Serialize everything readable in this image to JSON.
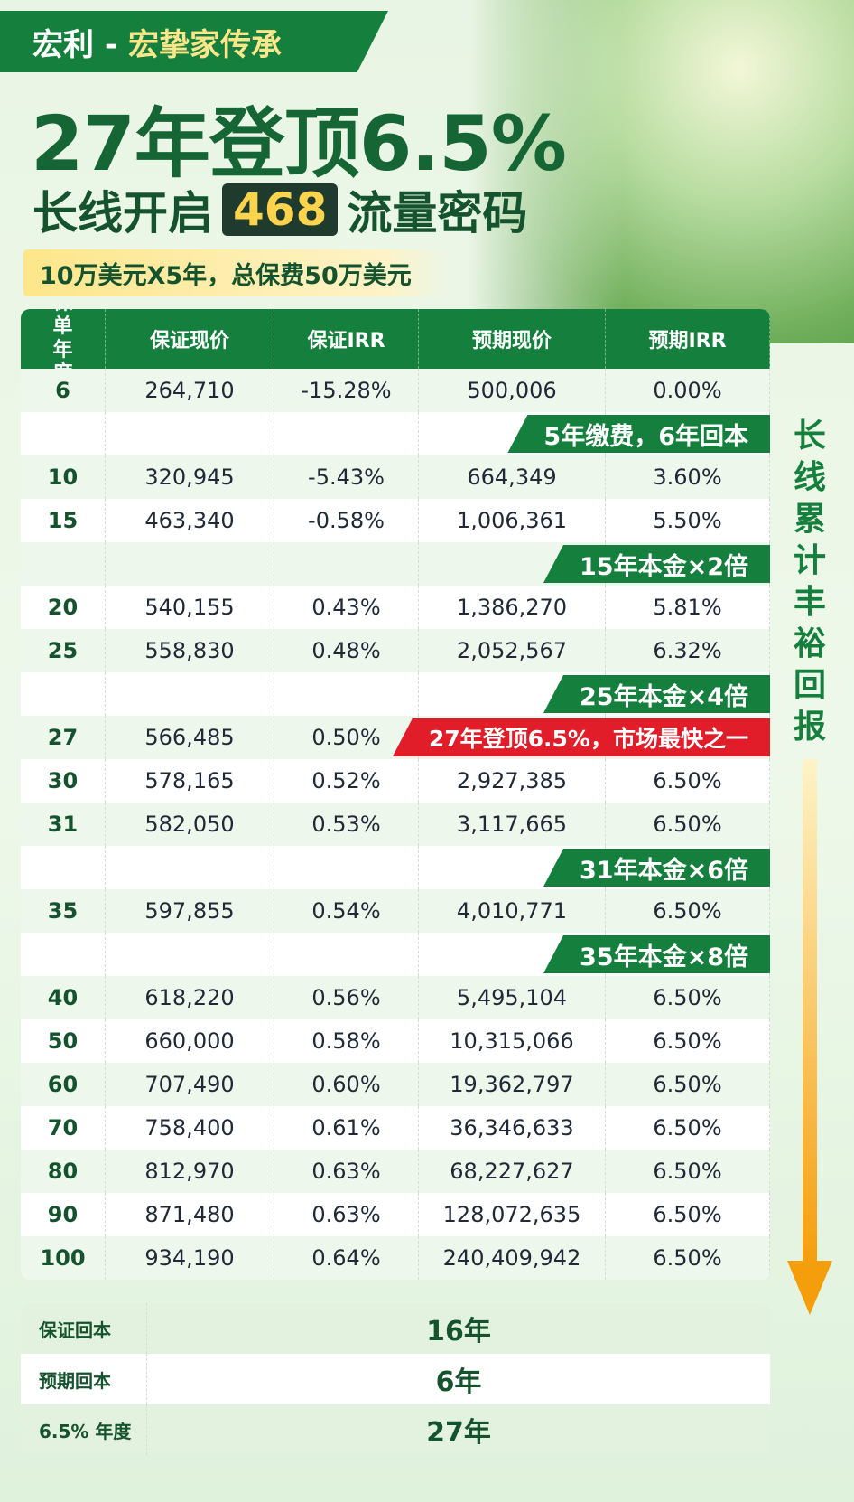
{
  "header": {
    "brand_prefix": "宏利 -",
    "brand_name": "宏挚家传承",
    "title": "27年登顶6.5%",
    "title_line2": [
      "长线开启",
      "468",
      "流量密码"
    ],
    "subtitle": "10万美元X5年，总保费50万美元"
  },
  "table": {
    "columns": [
      "保单年度",
      "保证现价",
      "保证IRR",
      "预期现价",
      "预期IRR"
    ],
    "rows": [
      {
        "cells": [
          "6",
          "264,710",
          "-15.28%",
          "500,006",
          "0.00%"
        ]
      },
      {
        "banner": "5年缴费，6年回本"
      },
      {
        "cells": [
          "10",
          "320,945",
          "-5.43%",
          "664,349",
          "3.60%"
        ]
      },
      {
        "cells": [
          "15",
          "463,340",
          "-0.58%",
          "1,006,361",
          "5.50%"
        ]
      },
      {
        "banner": "15年本金×2倍"
      },
      {
        "cells": [
          "20",
          "540,155",
          "0.43%",
          "1,386,270",
          "5.81%"
        ]
      },
      {
        "cells": [
          "25",
          "558,830",
          "0.48%",
          "2,052,567",
          "6.32%"
        ]
      },
      {
        "banner": "25年本金×4倍"
      },
      {
        "cells": [
          "27",
          "566,485",
          "0.50%"
        ],
        "banner": "27年登顶6.5%，市场最快之一"
      },
      {
        "cells": [
          "30",
          "578,165",
          "0.52%",
          "2,927,385",
          "6.50%"
        ]
      },
      {
        "cells": [
          "31",
          "582,050",
          "0.53%",
          "3,117,665",
          "6.50%"
        ]
      },
      {
        "banner": "31年本金×6倍"
      },
      {
        "cells": [
          "35",
          "597,855",
          "0.54%",
          "4,010,771",
          "6.50%"
        ]
      },
      {
        "banner": "35年本金×8倍"
      },
      {
        "cells": [
          "40",
          "618,220",
          "0.56%",
          "5,495,104",
          "6.50%"
        ]
      },
      {
        "cells": [
          "50",
          "660,000",
          "0.58%",
          "10,315,066",
          "6.50%"
        ]
      },
      {
        "cells": [
          "60",
          "707,490",
          "0.60%",
          "19,362,797",
          "6.50%"
        ]
      },
      {
        "cells": [
          "70",
          "758,400",
          "0.61%",
          "36,346,633",
          "6.50%"
        ]
      },
      {
        "cells": [
          "80",
          "812,970",
          "0.63%",
          "68,227,627",
          "6.50%"
        ]
      },
      {
        "cells": [
          "90",
          "871,480",
          "0.63%",
          "128,072,635",
          "6.50%"
        ]
      },
      {
        "cells": [
          "100",
          "934,190",
          "0.64%",
          "240,409,942",
          "6.50%"
        ]
      }
    ]
  },
  "summary": [
    {
      "label": "保证回本",
      "value": "16年"
    },
    {
      "label": "预期回本",
      "value": "6年"
    },
    {
      "label": "6.5% 年度",
      "value": "27年"
    }
  ],
  "side_note": "长线累计丰裕回报"
}
